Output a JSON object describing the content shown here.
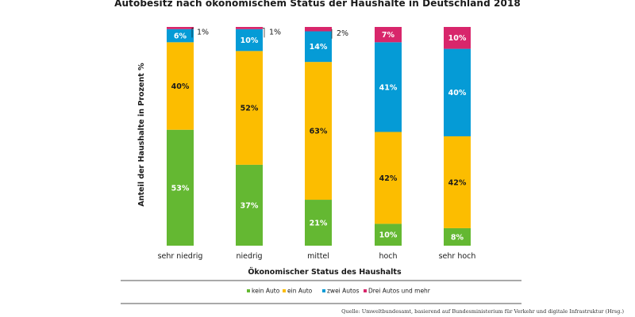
{
  "chart_data": {
    "type": "bar",
    "stacked": true,
    "title": "Autobesitz nach ökonomischem Status der Haushalte in Deutschland 2018",
    "xlabel": "Ökonomischer Status des Haushalts",
    "ylabel": "Anteil der Haushalte in Prozent %",
    "ylim": [
      0,
      100
    ],
    "categories": [
      "sehr niedrig",
      "niedrig",
      "mittel",
      "hoch",
      "sehr hoch"
    ],
    "series": [
      {
        "name": "kein Auto",
        "color": "#64b832",
        "values": [
          53,
          37,
          21,
          10,
          8
        ]
      },
      {
        "name": "ein Auto",
        "color": "#fcbd00",
        "values": [
          40,
          52,
          63,
          42,
          42
        ]
      },
      {
        "name": "zwei Autos",
        "color": "#059bd6",
        "values": [
          6,
          10,
          14,
          41,
          40
        ]
      },
      {
        "name": "Drei Autos und mehr",
        "color": "#d8266b",
        "values": [
          1,
          1,
          2,
          7,
          10
        ]
      }
    ],
    "legend": "bottom",
    "value_suffix": "%"
  },
  "source": "Quelle: Umweltbundesamt, basierend auf Bundesministerium für Verkehr und digitale Infrastruktur (Hrsg.)"
}
